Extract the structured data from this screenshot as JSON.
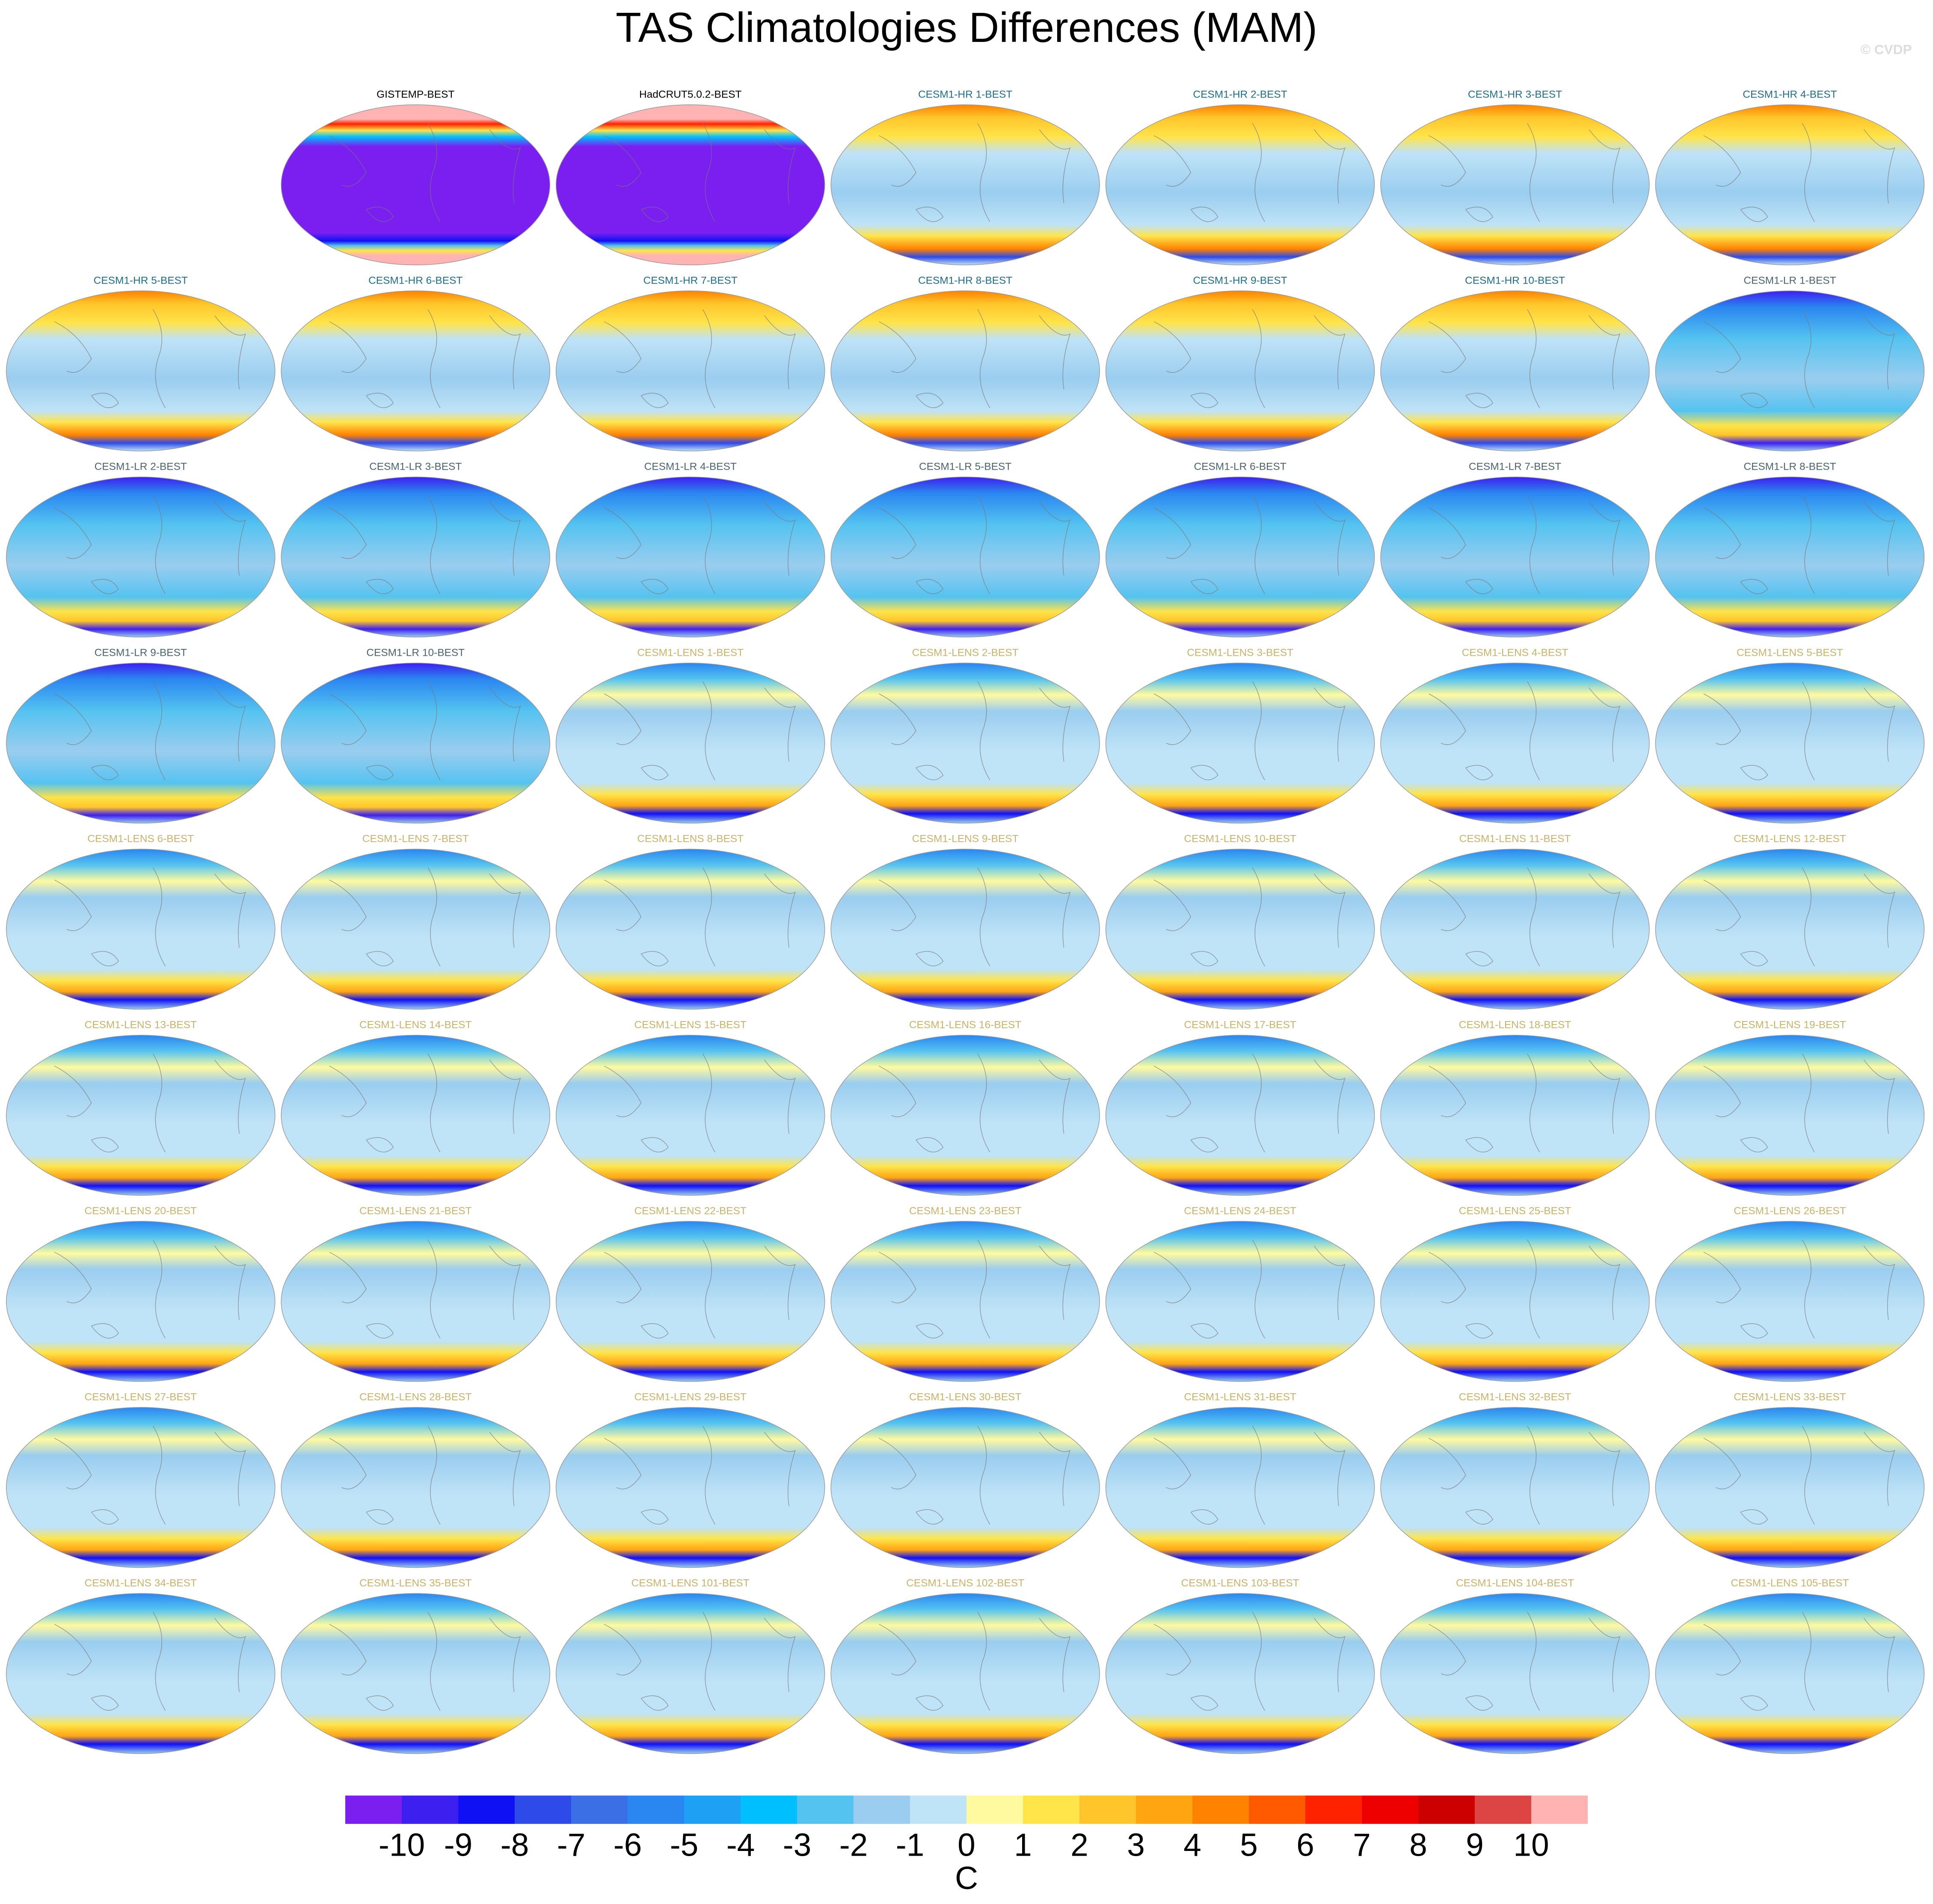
{
  "title": "TAS Climatologies Differences (MAM)",
  "watermark": "© CVDP",
  "panels": [
    {
      "title": "GISTEMP-BEST",
      "color": "#000000"
    },
    {
      "title": "HadCRUT5.0.2-BEST",
      "color": "#000000"
    },
    {
      "title": "CESM1-HR 1-BEST",
      "color": "#1f6f8b"
    },
    {
      "title": "CESM1-HR 2-BEST",
      "color": "#1f6f8b"
    },
    {
      "title": "CESM1-HR 3-BEST",
      "color": "#1f6f8b"
    },
    {
      "title": "CESM1-HR 4-BEST",
      "color": "#1f6f8b"
    },
    {
      "title": "CESM1-HR 5-BEST",
      "color": "#1f6f8b"
    },
    {
      "title": "CESM1-HR 6-BEST",
      "color": "#1f6f8b"
    },
    {
      "title": "CESM1-HR 7-BEST",
      "color": "#1f6f8b"
    },
    {
      "title": "CESM1-HR 8-BEST",
      "color": "#1f6f8b"
    },
    {
      "title": "CESM1-HR 9-BEST",
      "color": "#1f6f8b"
    },
    {
      "title": "CESM1-HR 10-BEST",
      "color": "#1f6f8b"
    },
    {
      "title": "CESM1-LR 1-BEST",
      "color": "#4a6470"
    },
    {
      "title": "CESM1-LR 2-BEST",
      "color": "#4a6470"
    },
    {
      "title": "CESM1-LR 3-BEST",
      "color": "#4a6470"
    },
    {
      "title": "CESM1-LR 4-BEST",
      "color": "#4a6470"
    },
    {
      "title": "CESM1-LR 5-BEST",
      "color": "#4a6470"
    },
    {
      "title": "CESM1-LR 6-BEST",
      "color": "#4a6470"
    },
    {
      "title": "CESM1-LR 7-BEST",
      "color": "#4a6470"
    },
    {
      "title": "CESM1-LR 8-BEST",
      "color": "#4a6470"
    },
    {
      "title": "CESM1-LR 9-BEST",
      "color": "#4a6470"
    },
    {
      "title": "CESM1-LR 10-BEST",
      "color": "#4a6470"
    },
    {
      "title": "CESM1-LENS 1-BEST",
      "color": "#c9b36a"
    },
    {
      "title": "CESM1-LENS 2-BEST",
      "color": "#c9b36a"
    },
    {
      "title": "CESM1-LENS 3-BEST",
      "color": "#c9b36a"
    },
    {
      "title": "CESM1-LENS 4-BEST",
      "color": "#c9b36a"
    },
    {
      "title": "CESM1-LENS 5-BEST",
      "color": "#c9b36a"
    },
    {
      "title": "CESM1-LENS 6-BEST",
      "color": "#c9b36a"
    },
    {
      "title": "CESM1-LENS 7-BEST",
      "color": "#c9b36a"
    },
    {
      "title": "CESM1-LENS 8-BEST",
      "color": "#c9b36a"
    },
    {
      "title": "CESM1-LENS 9-BEST",
      "color": "#c9b36a"
    },
    {
      "title": "CESM1-LENS 10-BEST",
      "color": "#c9b36a"
    },
    {
      "title": "CESM1-LENS 11-BEST",
      "color": "#c9b36a"
    },
    {
      "title": "CESM1-LENS 12-BEST",
      "color": "#c9b36a"
    },
    {
      "title": "CESM1-LENS 13-BEST",
      "color": "#c9b36a"
    },
    {
      "title": "CESM1-LENS 14-BEST",
      "color": "#c9b36a"
    },
    {
      "title": "CESM1-LENS 15-BEST",
      "color": "#c9b36a"
    },
    {
      "title": "CESM1-LENS 16-BEST",
      "color": "#c9b36a"
    },
    {
      "title": "CESM1-LENS 17-BEST",
      "color": "#c9b36a"
    },
    {
      "title": "CESM1-LENS 18-BEST",
      "color": "#c9b36a"
    },
    {
      "title": "CESM1-LENS 19-BEST",
      "color": "#c9b36a"
    },
    {
      "title": "CESM1-LENS 20-BEST",
      "color": "#c9b36a"
    },
    {
      "title": "CESM1-LENS 21-BEST",
      "color": "#c9b36a"
    },
    {
      "title": "CESM1-LENS 22-BEST",
      "color": "#c9b36a"
    },
    {
      "title": "CESM1-LENS 23-BEST",
      "color": "#c9b36a"
    },
    {
      "title": "CESM1-LENS 24-BEST",
      "color": "#c9b36a"
    },
    {
      "title": "CESM1-LENS 25-BEST",
      "color": "#c9b36a"
    },
    {
      "title": "CESM1-LENS 26-BEST",
      "color": "#c9b36a"
    },
    {
      "title": "CESM1-LENS 27-BEST",
      "color": "#c9b36a"
    },
    {
      "title": "CESM1-LENS 28-BEST",
      "color": "#c9b36a"
    },
    {
      "title": "CESM1-LENS 29-BEST",
      "color": "#c9b36a"
    },
    {
      "title": "CESM1-LENS 30-BEST",
      "color": "#c9b36a"
    },
    {
      "title": "CESM1-LENS 31-BEST",
      "color": "#c9b36a"
    },
    {
      "title": "CESM1-LENS 32-BEST",
      "color": "#c9b36a"
    },
    {
      "title": "CESM1-LENS 33-BEST",
      "color": "#c9b36a"
    },
    {
      "title": "CESM1-LENS 34-BEST",
      "color": "#c9b36a"
    },
    {
      "title": "CESM1-LENS 35-BEST",
      "color": "#c9b36a"
    },
    {
      "title": "CESM1-LENS 101-BEST",
      "color": "#c9b36a"
    },
    {
      "title": "CESM1-LENS 102-BEST",
      "color": "#c9b36a"
    },
    {
      "title": "CESM1-LENS 103-BEST",
      "color": "#c9b36a"
    },
    {
      "title": "CESM1-LENS 104-BEST",
      "color": "#c9b36a"
    },
    {
      "title": "CESM1-LENS 105-BEST",
      "color": "#c9b36a"
    }
  ],
  "colorbar": {
    "label": "C",
    "ticks": [
      -10,
      -9,
      -8,
      -7,
      -6,
      -5,
      -4,
      -3,
      -2,
      -1,
      0,
      1,
      2,
      3,
      4,
      5,
      6,
      7,
      8,
      9,
      10
    ],
    "colors": [
      "#7a1ff0",
      "#3d1ff0",
      "#1010f5",
      "#2e4ae8",
      "#3a6fe6",
      "#2a86f0",
      "#1ea0f5",
      "#00bfff",
      "#55c3f0",
      "#9acdef",
      "#bfe3f7",
      "#fffaa0",
      "#ffe44a",
      "#ffc52a",
      "#ffa512",
      "#ff8200",
      "#ff5a00",
      "#ff2200",
      "#ee0000",
      "#cc0000",
      "#dd4444",
      "#ffb3b3"
    ]
  }
}
